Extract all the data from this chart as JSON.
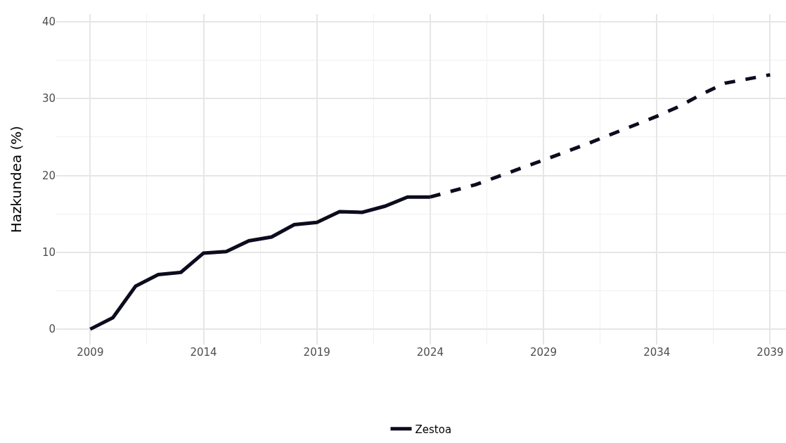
{
  "chart_data": {
    "type": "line",
    "ylabel": "Hazkundea (%)",
    "xlim": [
      2007.5,
      2039.7
    ],
    "xticks": [
      2009,
      2014,
      2019,
      2024,
      2029,
      2034,
      2039
    ],
    "ylim": [
      -2,
      41
    ],
    "yticks": [
      0,
      10,
      20,
      30,
      40
    ],
    "grid": true,
    "legend": "bottom",
    "marker": "none",
    "series": [
      {
        "name": "Zestoa",
        "color": "#0c0c1e",
        "line_style": "solid",
        "x": [
          2009,
          2010,
          2011,
          2012,
          2013,
          2014,
          2015,
          2016,
          2017,
          2018,
          2019,
          2020,
          2021,
          2022,
          2023,
          2024
        ],
        "values": [
          0,
          1.5,
          5.6,
          7.1,
          7.4,
          9.9,
          10.1,
          11.5,
          12.0,
          13.6,
          13.9,
          15.3,
          15.2,
          16.0,
          17.2,
          17.2
        ]
      },
      {
        "color": "#0c0c1e",
        "line_style": "dashed",
        "x": [
          2024,
          2026,
          2029,
          2031,
          2034,
          2035,
          2036,
          2037,
          2039
        ],
        "values": [
          17.2,
          18.8,
          22.0,
          24.2,
          27.7,
          29.0,
          30.6,
          32.0,
          33.1
        ]
      }
    ]
  }
}
